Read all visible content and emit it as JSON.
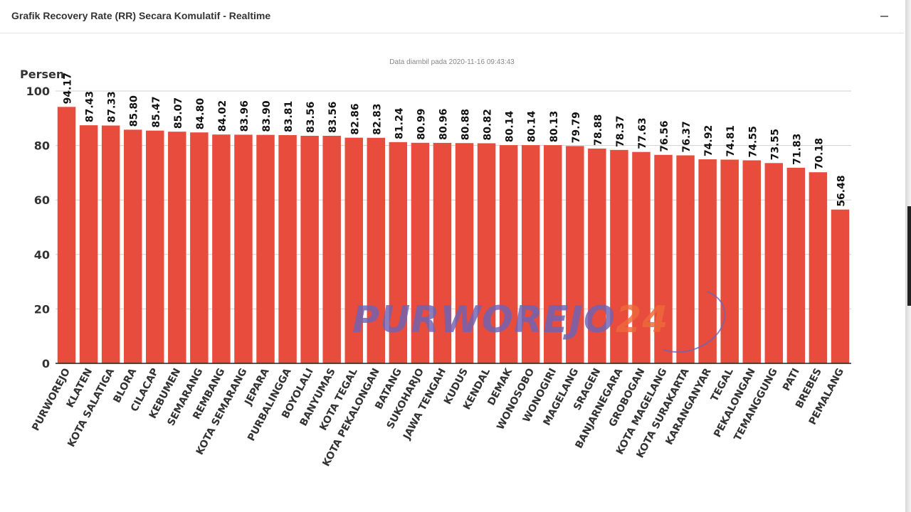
{
  "panel": {
    "title": "Grafik Recovery Rate (RR) Secara Komulatif - Realtime",
    "collapse_icon": "minus-icon"
  },
  "timestamp": "Data diambil pada 2020-11-16 09:43:43",
  "watermark": {
    "part1": "PURWOREJO",
    "part2": "24"
  },
  "colors": {
    "bar": "#e74c3c",
    "grid": "#d0d0d0",
    "axis": "#222222",
    "watermark_purple": "#6e64b5",
    "watermark_orange": "#ef6a3a"
  },
  "chart_data": {
    "type": "bar",
    "ylabel": "Persen",
    "ylim": [
      0,
      100
    ],
    "yticks": [
      0,
      20,
      40,
      60,
      80,
      100
    ],
    "grid": "horizontal",
    "categories": [
      "PURWOREJO",
      "KLATEN",
      "KOTA SALATIGA",
      "BLORA",
      "CILACAP",
      "KEBUMEN",
      "SEMARANG",
      "REMBANG",
      "KOTA SEMARANG",
      "JEPARA",
      "PURBALINGGA",
      "BOYOLALI",
      "BANYUMAS",
      "KOTA TEGAL",
      "KOTA PEKALONGAN",
      "BATANG",
      "SUKOHARJO",
      "JAWA TENGAH",
      "KUDUS",
      "KENDAL",
      "DEMAK",
      "WONOSOBO",
      "WONOGIRI",
      "MAGELANG",
      "SRAGEN",
      "BANJARNEGARA",
      "GROBOGAN",
      "KOTA MAGELANG",
      "KOTA SURAKARTA",
      "KARANGANYAR",
      "TEGAL",
      "PEKALONGAN",
      "TEMANGGUNG",
      "PATI",
      "BREBES",
      "PEMALANG"
    ],
    "values": [
      94.17,
      87.43,
      87.33,
      85.8,
      85.47,
      85.07,
      84.8,
      84.02,
      83.96,
      83.9,
      83.81,
      83.56,
      83.56,
      82.86,
      82.83,
      81.24,
      80.99,
      80.96,
      80.88,
      80.82,
      80.14,
      80.14,
      80.13,
      79.79,
      78.88,
      78.37,
      77.63,
      76.56,
      76.37,
      74.92,
      74.81,
      74.55,
      73.55,
      71.83,
      70.18,
      56.48
    ],
    "labels": [
      "94.17",
      "87.43",
      "87.33",
      "85.80",
      "85.47",
      "85.07",
      "84.80",
      "84.02",
      "83.96",
      "83.90",
      "83.81",
      "83.56",
      "83.56",
      "82.86",
      "82.83",
      "81.24",
      "80.99",
      "80.96",
      "80.88",
      "80.82",
      "80.14",
      "80.14",
      "80.13",
      "79.79",
      "78.88",
      "78.37",
      "77.63",
      "76.56",
      "76.37",
      "74.92",
      "74.81",
      "74.55",
      "73.55",
      "71.83",
      "70.18",
      "56.48"
    ]
  }
}
